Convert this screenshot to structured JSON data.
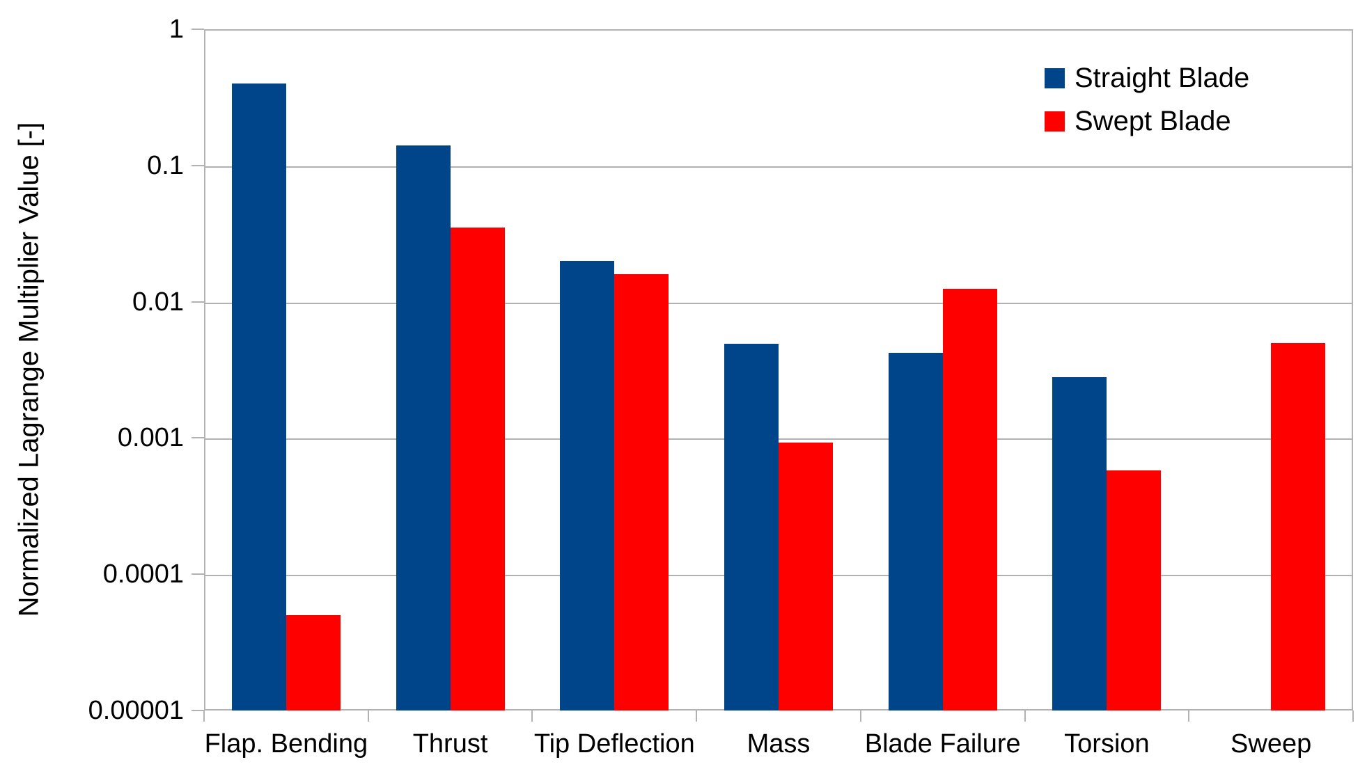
{
  "chart_data": {
    "type": "bar",
    "title": "",
    "xlabel": "",
    "ylabel": "Normalized Lagrange Multiplier Value [-]",
    "y_scale": "log",
    "ylim": [
      1e-05,
      1
    ],
    "y_ticks": [
      "1",
      "0.1",
      "0.01",
      "0.001",
      "0.0001",
      "0.00001"
    ],
    "grid": "horizontal",
    "legend_position": "top-right",
    "categories": [
      "Flap. Bending",
      "Thrust",
      "Tip Deflection",
      "Mass",
      "Blade Failure",
      "Torsion",
      "Sweep"
    ],
    "series": [
      {
        "name": "Straight Blade",
        "color": "#004589",
        "values": [
          0.4,
          0.14,
          0.02,
          0.0049,
          0.0042,
          0.0028,
          null
        ]
      },
      {
        "name": "Swept Blade",
        "color": "#fe0000",
        "values": [
          5e-05,
          0.035,
          0.016,
          0.00092,
          0.0125,
          0.00058,
          0.005
        ]
      }
    ]
  },
  "colors": {
    "gridline": "#b2b2b2",
    "axis": "#b2b2b2",
    "text": "#000000",
    "background": "#ffffff"
  }
}
